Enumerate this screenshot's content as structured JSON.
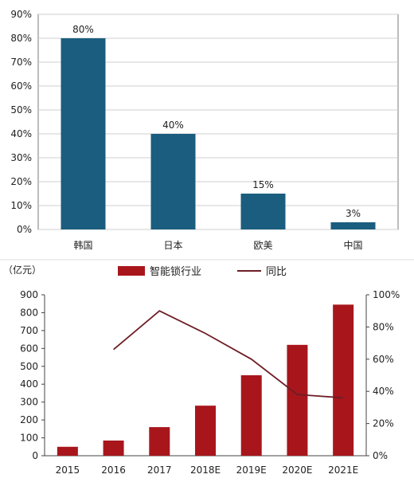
{
  "colors": {
    "bar_top": "#1b5d7e",
    "bar_bottom": "#a8161c",
    "line": "#6e1e26",
    "grid": "#cfcfcf",
    "frame": "#7a7a7a"
  },
  "chart_data": [
    {
      "type": "bar",
      "categories": [
        "韩国",
        "日本",
        "欧美",
        "中国"
      ],
      "values": [
        80,
        40,
        15,
        3
      ],
      "data_labels": [
        "80%",
        "40%",
        "15%",
        "3%"
      ],
      "yticks": [
        "0%",
        "10%",
        "20%",
        "30%",
        "40%",
        "50%",
        "60%",
        "70%",
        "80%",
        "90%"
      ],
      "ylim": [
        0,
        90
      ],
      "grid": true,
      "legend": "none"
    },
    {
      "type": "bar",
      "categories": [
        "2015",
        "2016",
        "2017",
        "2018E",
        "2019E",
        "2020E",
        "2021E"
      ],
      "unit_label": "（亿元）",
      "series": [
        {
          "name": "智能锁行业",
          "type": "bar",
          "axis": "left",
          "values": [
            50,
            85,
            160,
            280,
            450,
            620,
            845
          ]
        },
        {
          "name": "同比",
          "type": "line",
          "axis": "right",
          "values": [
            null,
            66,
            90,
            76,
            60,
            38,
            36
          ]
        }
      ],
      "yticks_left": [
        "0",
        "100",
        "200",
        "300",
        "400",
        "500",
        "600",
        "700",
        "800",
        "900"
      ],
      "ylim_left": [
        0,
        900
      ],
      "yticks_right": [
        "0%",
        "20%",
        "40%",
        "60%",
        "80%",
        "100%"
      ],
      "ylim_right": [
        0,
        100
      ],
      "grid": false,
      "legend": "top-center"
    }
  ]
}
